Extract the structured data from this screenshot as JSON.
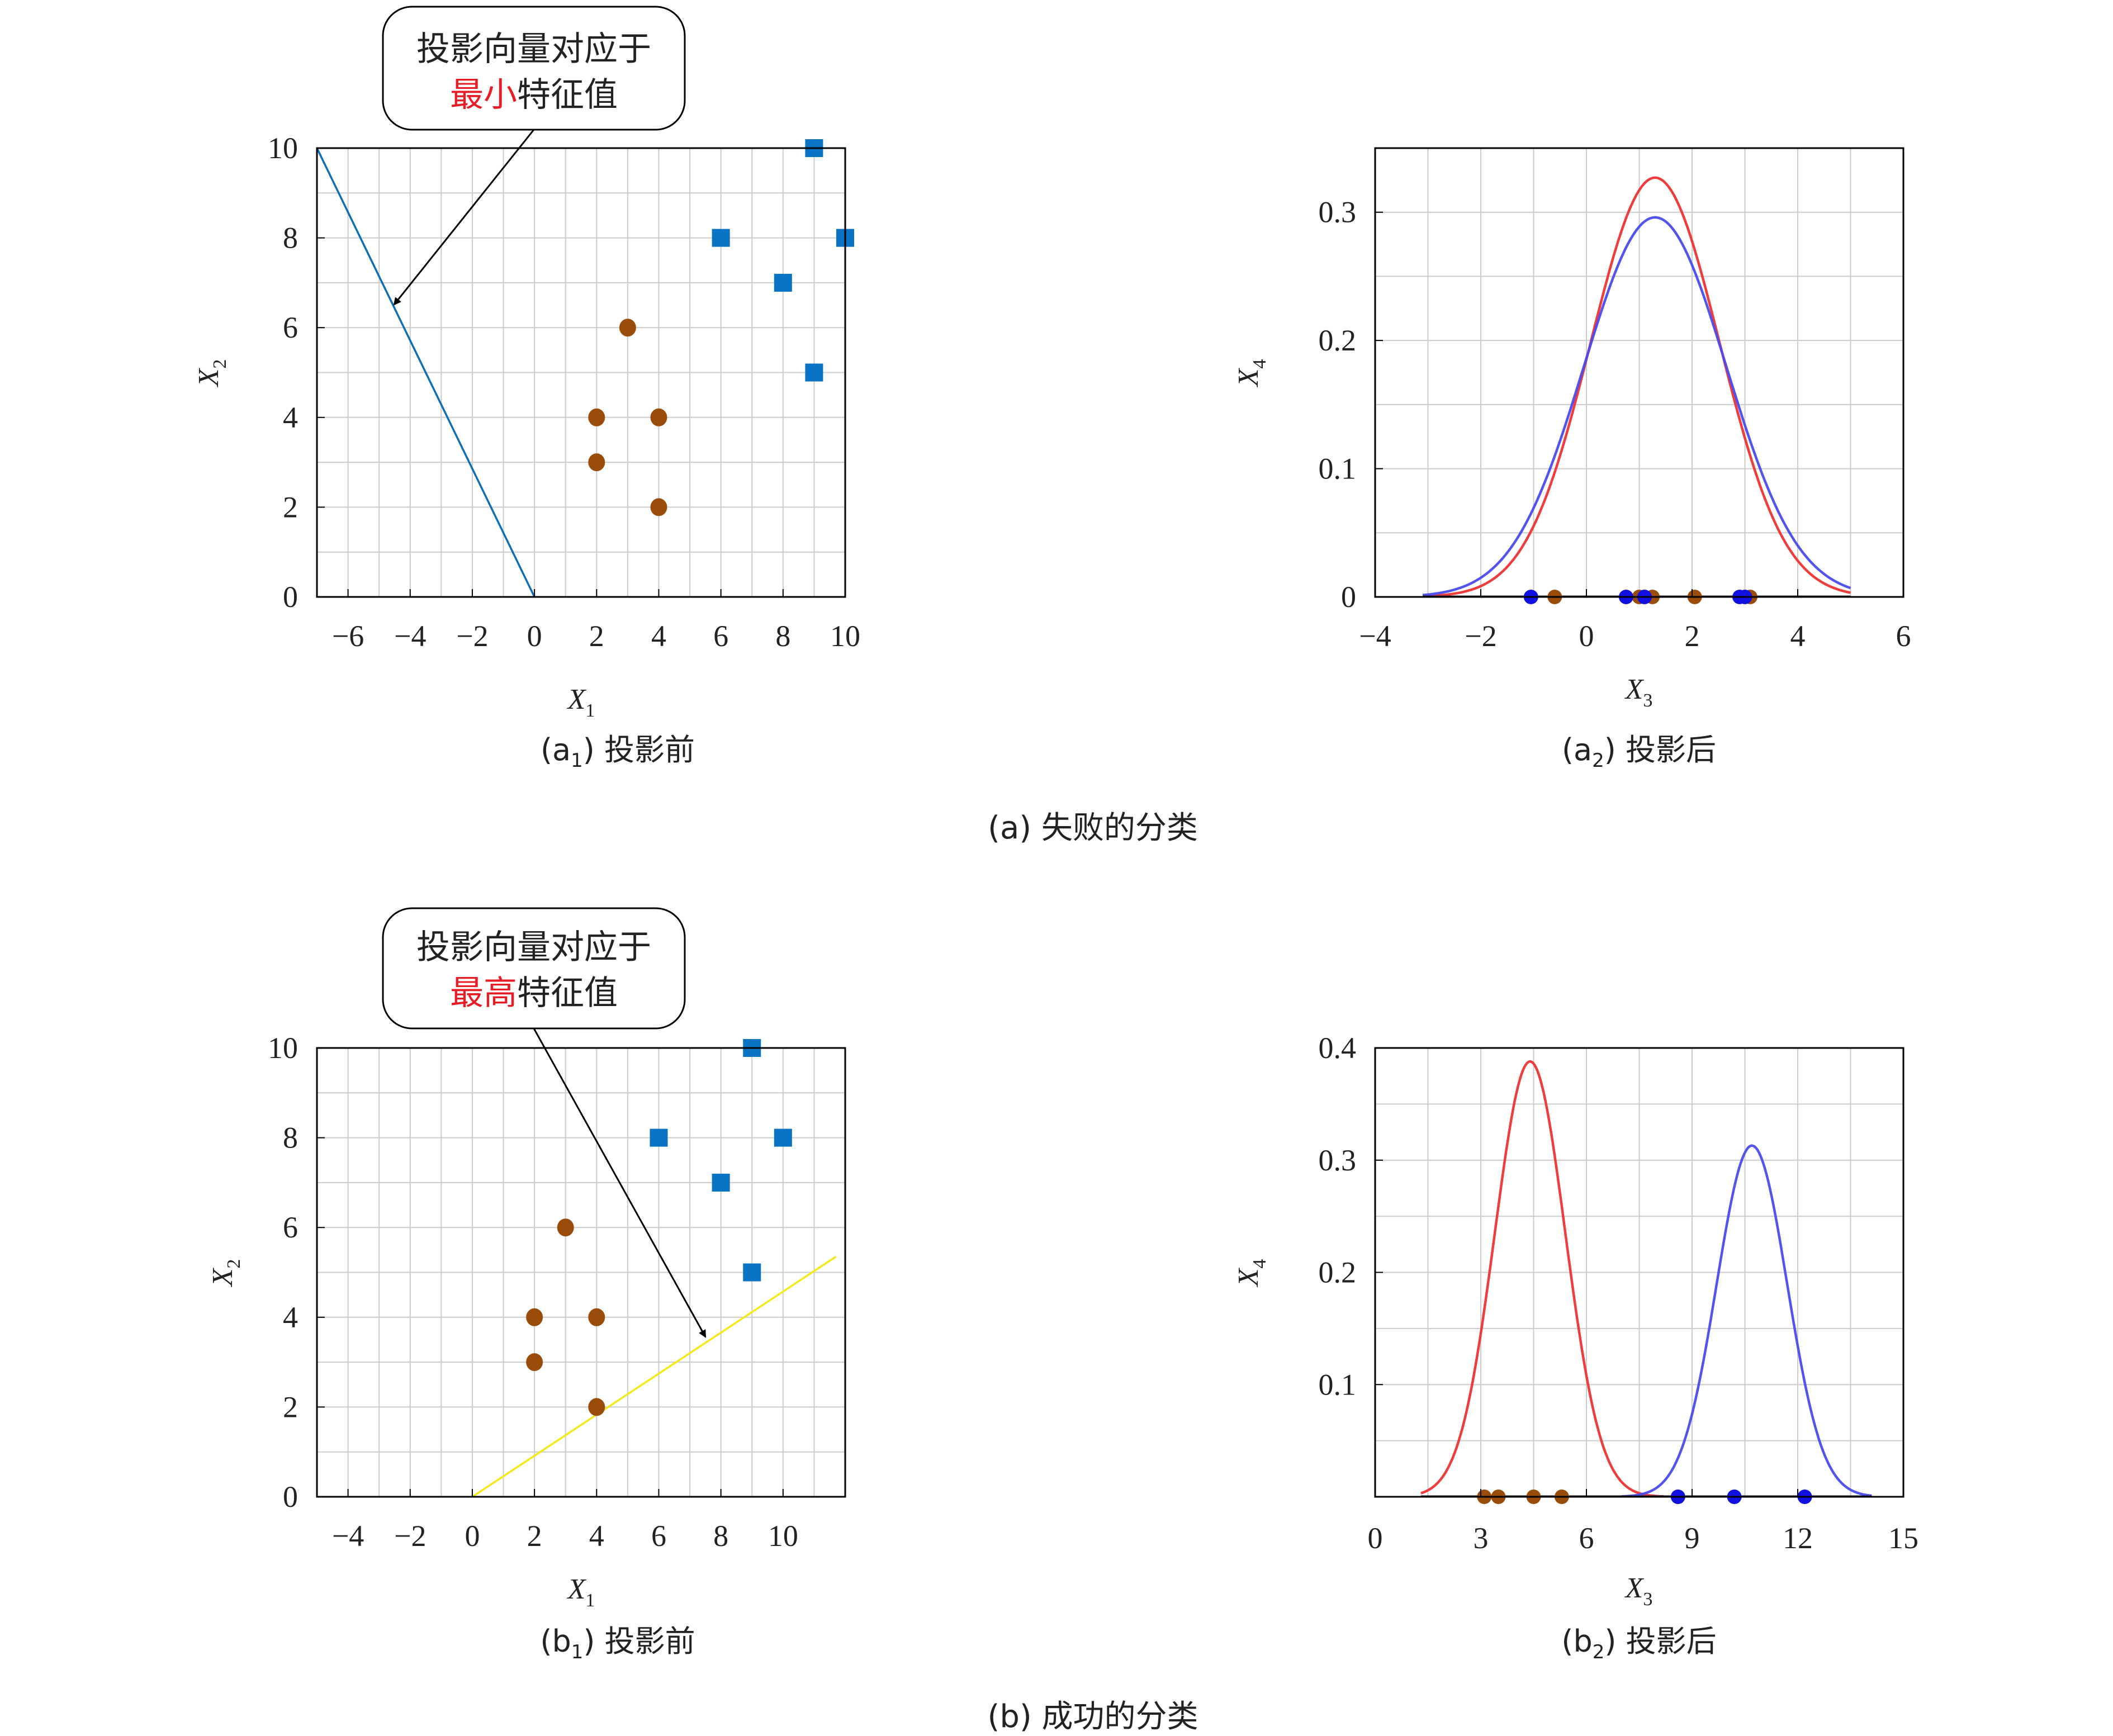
{
  "colors": {
    "blue_square": "#0a73c4",
    "brown_dot": "#9a4d0a",
    "red_curve": "#ee3333",
    "blue_curve": "#4a4aee",
    "blue_dot": "#1010e0",
    "line_a": "#0a6fb8",
    "line_b": "#f2ea1a",
    "grid": "#cccccc",
    "red_text": "#e81c24"
  },
  "chart_data": [
    {
      "id": "a1",
      "type": "scatter",
      "caption": "(a1) 投影前",
      "caption_prefix": "(a",
      "caption_sub": "1",
      "caption_suffix": ") 投影前",
      "xlabel": "X",
      "xlabel_sub": "1",
      "ylabel": "X",
      "ylabel_sub": "2",
      "xlim": [
        -7,
        10
      ],
      "ylim": [
        0,
        10
      ],
      "xticks": [
        -6,
        -4,
        -2,
        0,
        2,
        4,
        6,
        8,
        10
      ],
      "xtick_labels": [
        "−6",
        "−4",
        "−2",
        "0",
        "2",
        "4",
        "6",
        "8",
        "10"
      ],
      "yticks": [
        0,
        2,
        4,
        6,
        8,
        10
      ],
      "ytick_labels": [
        "0",
        "2",
        "4",
        "6",
        "8",
        "10"
      ],
      "grid": true,
      "series": [
        {
          "marker": "square",
          "points": [
            [
              9,
              10
            ],
            [
              6,
              8
            ],
            [
              10,
              8
            ],
            [
              8,
              7
            ],
            [
              9,
              5
            ]
          ]
        },
        {
          "marker": "circle",
          "points": [
            [
              3,
              6
            ],
            [
              2,
              4
            ],
            [
              4,
              4
            ],
            [
              2,
              3
            ],
            [
              4,
              2
            ]
          ]
        }
      ],
      "line": {
        "x": [
          -7,
          0
        ],
        "y": [
          10,
          0
        ]
      },
      "callout": {
        "line1": "投影向量对应于",
        "line2_red": "最小",
        "line2_rest": "特征值"
      }
    },
    {
      "id": "a2",
      "type": "line",
      "caption": "(a2) 投影后",
      "caption_prefix": "(a",
      "caption_sub": "2",
      "caption_suffix": ") 投影后",
      "xlabel": "X",
      "xlabel_sub": "3",
      "ylabel": "X",
      "ylabel_sub": "4",
      "xlim": [
        -4,
        6
      ],
      "ylim": [
        0,
        0.35
      ],
      "xticks": [
        -4,
        -2,
        0,
        2,
        4,
        6
      ],
      "xtick_labels": [
        "−4",
        "−2",
        "0",
        "2",
        "4",
        "6"
      ],
      "yticks": [
        0,
        0.1,
        0.2,
        0.3
      ],
      "ytick_labels": [
        "0",
        "0.1",
        "0.2",
        "0.3"
      ],
      "grid": true,
      "curves": [
        {
          "color": "red",
          "mu": 1.3,
          "peak": 0.327,
          "x_range": [
            -3.1,
            5.0
          ]
        },
        {
          "color": "blue",
          "mu": 1.3,
          "peak": 0.296,
          "x_range": [
            -3.1,
            5.0
          ]
        }
      ],
      "points_blue": [
        -1.05,
        0.75,
        1.1,
        2.9,
        3.0
      ],
      "points_brown": [
        -0.6,
        1.0,
        1.25,
        2.05,
        3.1
      ]
    },
    {
      "id": "b1",
      "type": "scatter",
      "caption": "(b1) 投影前",
      "caption_prefix": "(b",
      "caption_sub": "1",
      "caption_suffix": ") 投影前",
      "xlabel": "X",
      "xlabel_sub": "1",
      "ylabel": "X",
      "ylabel_sub": "2",
      "xlim": [
        -5,
        12
      ],
      "ylim": [
        0,
        10
      ],
      "xticks": [
        -4,
        -2,
        0,
        2,
        4,
        6,
        8,
        10
      ],
      "xtick_labels": [
        "−4",
        "−2",
        "0",
        "2",
        "4",
        "6",
        "8",
        "10"
      ],
      "yticks": [
        0,
        2,
        4,
        6,
        8,
        10
      ],
      "ytick_labels": [
        "0",
        "2",
        "4",
        "6",
        "8",
        "10"
      ],
      "grid": true,
      "series": [
        {
          "marker": "square",
          "points": [
            [
              9,
              10
            ],
            [
              6,
              8
            ],
            [
              10,
              8
            ],
            [
              8,
              7
            ],
            [
              9,
              5
            ]
          ]
        },
        {
          "marker": "circle",
          "points": [
            [
              3,
              6
            ],
            [
              2,
              4
            ],
            [
              4,
              4
            ],
            [
              2,
              3
            ],
            [
              4,
              2
            ]
          ]
        }
      ],
      "line": {
        "x": [
          0,
          11.7
        ],
        "y": [
          0,
          5.35
        ]
      },
      "callout": {
        "line1": "投影向量对应于",
        "line2_red": "最高",
        "line2_rest": "特征值"
      }
    },
    {
      "id": "b2",
      "type": "line",
      "caption": "(b2) 投影后",
      "caption_prefix": "(b",
      "caption_sub": "2",
      "caption_suffix": ") 投影后",
      "xlabel": "X",
      "xlabel_sub": "3",
      "ylabel": "X",
      "ylabel_sub": "4",
      "xlim": [
        0,
        15
      ],
      "ylim": [
        0,
        0.4
      ],
      "xticks": [
        0,
        3,
        6,
        9,
        12,
        15
      ],
      "xtick_labels": [
        "0",
        "3",
        "6",
        "9",
        "12",
        "15"
      ],
      "yticks": [
        0.1,
        0.2,
        0.3,
        0.4
      ],
      "ytick_labels": [
        "0.1",
        "0.2",
        "0.3",
        "0.4"
      ],
      "grid": true,
      "curves": [
        {
          "color": "red",
          "mu": 4.4,
          "peak": 0.388,
          "x_range": [
            1.3,
            8.2
          ]
        },
        {
          "color": "blue",
          "mu": 10.7,
          "peak": 0.313,
          "x_range": [
            7.0,
            14.1
          ]
        }
      ],
      "points_blue": [
        8.6,
        10.2,
        12.2
      ],
      "points_brown": [
        3.1,
        3.5,
        4.5,
        5.3
      ]
    }
  ],
  "group_captions": {
    "a": "(a) 失败的分类",
    "b": "(b) 成功的分类"
  }
}
